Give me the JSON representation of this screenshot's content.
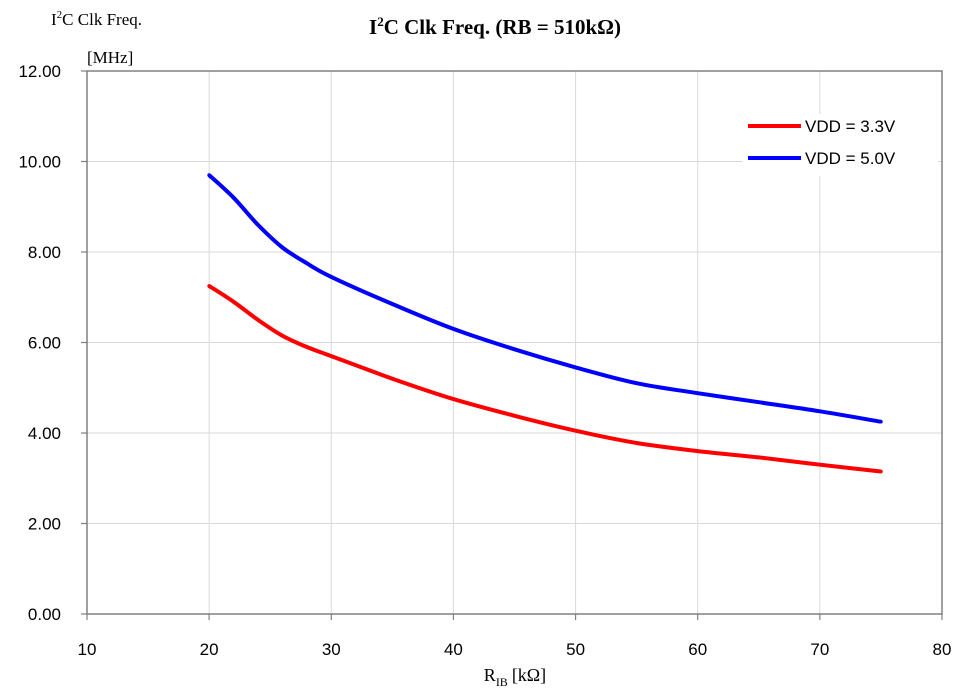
{
  "chart_data": {
    "type": "line",
    "title": {
      "prefix": "I",
      "sup": "2",
      "rest": "C Clk Freq. (RB = 510kΩ)"
    },
    "ylabel": {
      "prefix": "I",
      "sup": "2",
      "rest": "C Clk Freq.",
      "unit": "[MHz]"
    },
    "xlabel": {
      "main": "R",
      "sub": "IB",
      "unit": "[kΩ]"
    },
    "xlim": [
      10,
      80
    ],
    "ylim": [
      0,
      12
    ],
    "xticks": [
      "10",
      "20",
      "30",
      "40",
      "50",
      "60",
      "70",
      "80"
    ],
    "yticks": [
      "0.00",
      "2.00",
      "4.00",
      "6.00",
      "8.00",
      "10.00",
      "12.00"
    ],
    "grid": true,
    "legend_position": "top-right",
    "series": [
      {
        "name": "VDD = 3.3V",
        "color": "#ff0000",
        "x": [
          20,
          22,
          24,
          26,
          28,
          30,
          35,
          40,
          45,
          50,
          55,
          60,
          65,
          70,
          75
        ],
        "y": [
          7.25,
          6.9,
          6.5,
          6.15,
          5.9,
          5.7,
          5.2,
          4.75,
          4.38,
          4.05,
          3.78,
          3.6,
          3.46,
          3.3,
          3.15
        ]
      },
      {
        "name": "VDD = 5.0V",
        "color": "#0000ff",
        "x": [
          20,
          22,
          24,
          26,
          28,
          30,
          35,
          40,
          45,
          50,
          55,
          60,
          65,
          70,
          75
        ],
        "y": [
          9.7,
          9.2,
          8.6,
          8.1,
          7.75,
          7.45,
          6.85,
          6.3,
          5.85,
          5.45,
          5.1,
          4.88,
          4.68,
          4.48,
          4.25
        ]
      }
    ]
  }
}
